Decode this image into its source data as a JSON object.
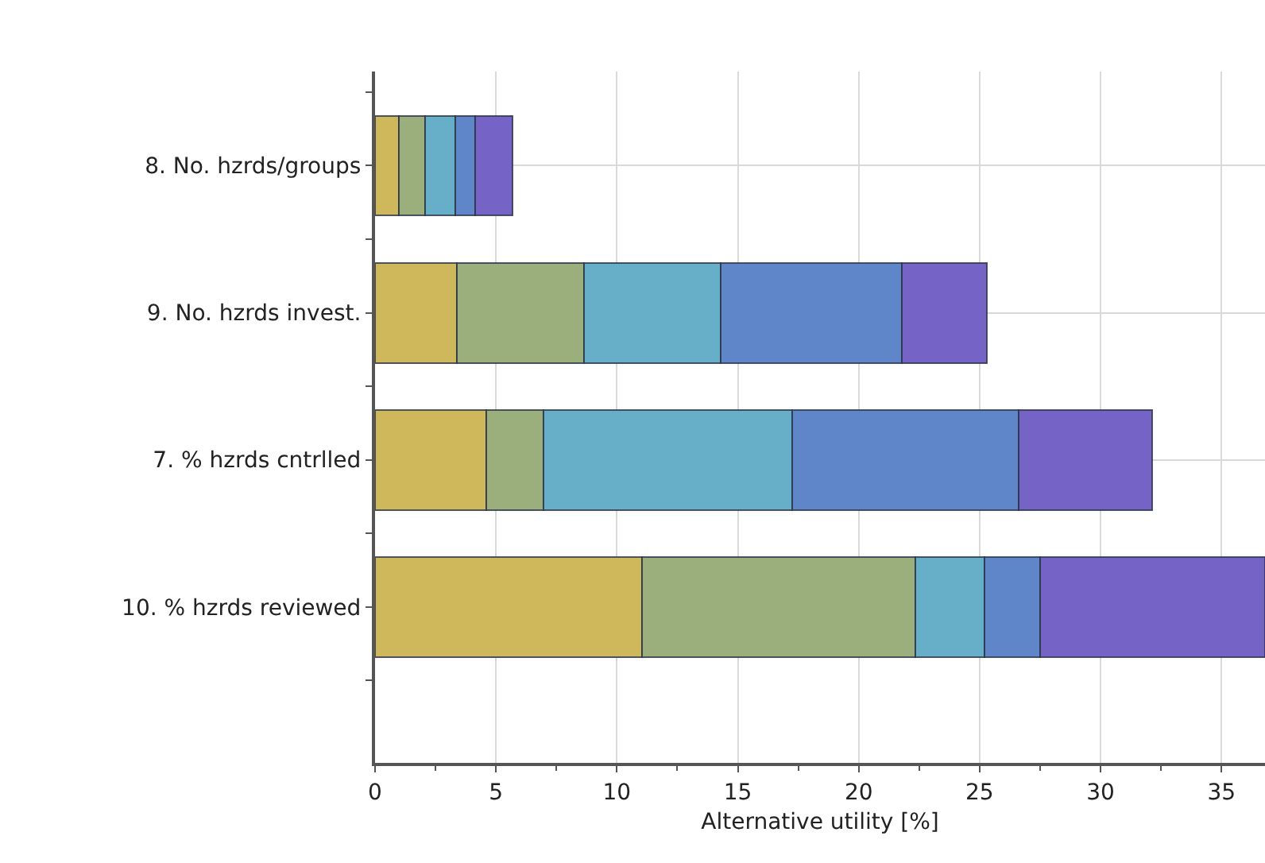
{
  "chart_data": {
    "type": "bar",
    "orientation": "horizontal",
    "stacked": true,
    "xlabel": "Alternative utility [%]",
    "categories": [
      "8. No. hzrds/groups",
      "9. No. hzrds invest.",
      "7. % hzrds cntrlled",
      "10. % hzrds reviewed"
    ],
    "series": [
      {
        "color": "#cfb85c",
        "values": [
          0.98,
          3.4,
          4.6,
          11.05
        ]
      },
      {
        "color": "#9aaf7c",
        "values": [
          1.1,
          5.25,
          2.35,
          11.3
        ]
      },
      {
        "color": "#67afc9",
        "values": [
          1.25,
          5.65,
          10.3,
          2.85
        ]
      },
      {
        "color": "#5f86c9",
        "values": [
          0.8,
          7.5,
          9.35,
          2.3
        ]
      },
      {
        "color": "#7663c6",
        "values": [
          1.55,
          3.5,
          5.55,
          9.3
        ]
      }
    ],
    "xlim": [
      0,
      36.8
    ],
    "xticks": [
      0,
      5,
      10,
      15,
      20,
      25,
      30,
      35
    ],
    "grid": true
  }
}
